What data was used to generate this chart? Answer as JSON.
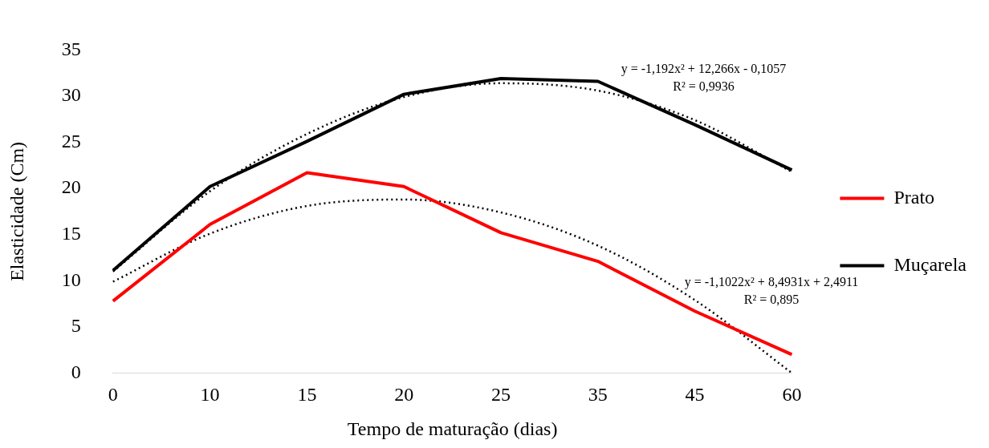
{
  "chart_data": {
    "type": "line",
    "xlabel": "Tempo de maturação (dias)",
    "ylabel": "Elasticidade (Cm)",
    "categories": [
      "0",
      "10",
      "15",
      "20",
      "25",
      "35",
      "45",
      "60"
    ],
    "ylim": [
      0,
      35
    ],
    "yticks": [
      0,
      5,
      10,
      15,
      20,
      25,
      30,
      35
    ],
    "grid": false,
    "legend": "right",
    "marker": "none",
    "series": [
      {
        "name": "Prato",
        "color": "#ff0000",
        "line_style": "solid",
        "values": [
          7.8,
          16.1,
          21.7,
          20.2,
          15.2,
          12.1,
          6.7,
          2.0
        ]
      },
      {
        "name": "Muçarela",
        "color": "#000000",
        "line_style": "solid",
        "values": [
          11.1,
          20.2,
          25.1,
          30.2,
          31.9,
          31.6,
          26.9,
          22.0
        ]
      },
      {
        "type": "line",
        "color": "#000000",
        "line_style": "dotted",
        "values": [
          11.0,
          19.7,
          25.9,
          29.9,
          31.4,
          30.6,
          27.4,
          21.8
        ]
      },
      {
        "type": "line",
        "color": "#000000",
        "line_style": "dotted",
        "values": [
          9.9,
          15.1,
          18.1,
          18.8,
          17.4,
          13.8,
          7.9,
          0
        ]
      }
    ],
    "annotations": [
      "y = -1,192x² + 12,266x - 0,1057\nR² = 0,9936",
      "y = -1,1022x² + 8,4931x + 2,4911\nR² = 0,895"
    ]
  }
}
